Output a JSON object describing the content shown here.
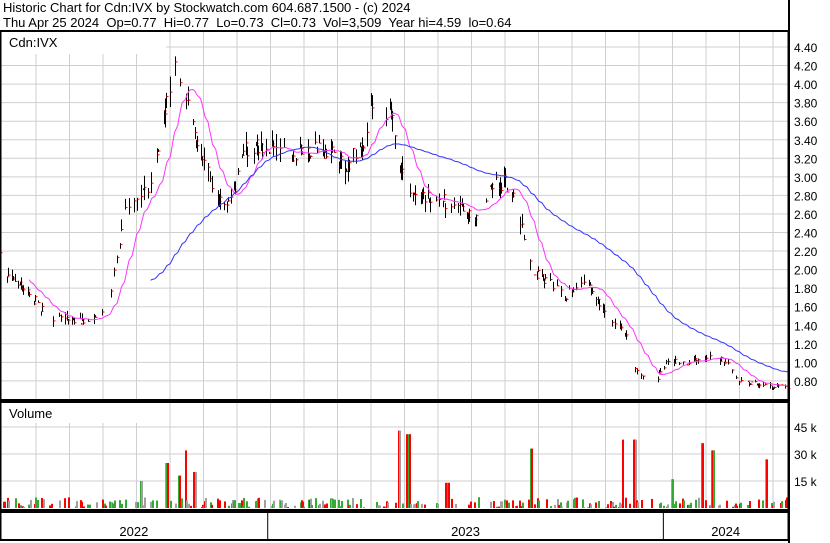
{
  "header": {
    "line1": "Historic Chart for Cdn:IVX by Stockwatch.com 604.687.1500 - (c) 2024",
    "line2": "Thu Apr 25 2024  Op=0.77  Hi=0.77  Lo=0.73  Cl=0.73  Vol=3,509  Year hi=4.59  lo=0.64"
  },
  "chart_data": [
    {
      "type": "ohlc",
      "symbol_label": "Cdn:IVX",
      "date_range": [
        "2022-04-29",
        "2024-04-25"
      ],
      "ylim": [
        0.6,
        4.6
      ],
      "yticks": [
        "0.80",
        "1.00",
        "1.20",
        "1.40",
        "1.60",
        "1.80",
        "2.00",
        "2.20",
        "2.40",
        "2.60",
        "2.80",
        "3.00",
        "3.20",
        "3.40",
        "3.60",
        "3.80",
        "4.00",
        "4.20",
        "4.40"
      ],
      "xlabels": [
        "2022",
        "2023",
        "2024"
      ],
      "grid": true,
      "colors": {
        "bar": "#000000",
        "close_tick": "#ff0000",
        "ma_short": "#ff33ff",
        "ma_long": "#3333ff"
      },
      "close_points": [
        [
          "2022-04-29",
          2.25
        ],
        [
          "2022-05-05",
          1.9
        ],
        [
          "2022-05-20",
          1.8
        ],
        [
          "2022-06-03",
          1.62
        ],
        [
          "2022-06-17",
          1.48
        ],
        [
          "2022-07-08",
          1.45
        ],
        [
          "2022-07-22",
          1.45
        ],
        [
          "2022-08-05",
          1.6
        ],
        [
          "2022-08-12",
          1.95
        ],
        [
          "2022-08-22",
          2.6
        ],
        [
          "2022-09-06",
          2.75
        ],
        [
          "2022-09-18",
          3.0
        ],
        [
          "2022-09-28",
          3.7
        ],
        [
          "2022-10-09",
          4.3
        ],
        [
          "2022-10-16",
          3.9
        ],
        [
          "2022-10-26",
          3.5
        ],
        [
          "2022-11-05",
          3.1
        ],
        [
          "2022-11-15",
          2.7
        ],
        [
          "2022-11-29",
          2.8
        ],
        [
          "2022-12-12",
          3.3
        ],
        [
          "2022-12-28",
          3.35
        ],
        [
          "2023-01-24",
          3.25
        ],
        [
          "2023-02-21",
          3.3
        ],
        [
          "2023-03-14",
          3.15
        ],
        [
          "2023-03-28",
          3.3
        ],
        [
          "2023-04-08",
          3.8
        ],
        [
          "2023-04-25",
          3.7
        ],
        [
          "2023-05-05",
          3.0
        ],
        [
          "2023-05-20",
          2.75
        ],
        [
          "2023-06-10",
          2.75
        ],
        [
          "2023-06-25",
          2.65
        ],
        [
          "2023-07-12",
          2.55
        ],
        [
          "2023-07-25",
          2.9
        ],
        [
          "2023-08-08",
          2.95
        ],
        [
          "2023-08-20",
          2.65
        ],
        [
          "2023-09-01",
          2.0
        ],
        [
          "2023-09-20",
          1.85
        ],
        [
          "2023-10-03",
          1.7
        ],
        [
          "2023-10-15",
          1.9
        ],
        [
          "2023-10-28",
          1.75
        ],
        [
          "2023-11-12",
          1.45
        ],
        [
          "2023-11-28",
          1.3
        ],
        [
          "2023-12-05",
          0.92
        ],
        [
          "2023-12-25",
          0.8
        ],
        [
          "2024-01-05",
          1.02
        ],
        [
          "2024-01-25",
          1.0
        ],
        [
          "2024-02-15",
          1.08
        ],
        [
          "2024-03-01",
          0.98
        ],
        [
          "2024-03-10",
          0.8
        ],
        [
          "2024-04-01",
          0.76
        ],
        [
          "2024-04-25",
          0.73
        ]
      ]
    },
    {
      "type": "bar",
      "title": "Volume",
      "yticks": [
        "15 k",
        "30 k",
        "45 k"
      ],
      "ylim": [
        0,
        50000
      ],
      "colors": {
        "up": "#33aa33",
        "down": "#ff0000",
        "flat": "#a0a0a0"
      },
      "volume_spikes": [
        [
          "2022-09-05",
          15000
        ],
        [
          "2022-09-29",
          25000
        ],
        [
          "2022-10-10",
          18000
        ],
        [
          "2022-10-16",
          32000
        ],
        [
          "2022-10-25",
          20000
        ],
        [
          "2023-05-01",
          43000
        ],
        [
          "2023-05-10",
          41000
        ],
        [
          "2023-06-15",
          14000
        ],
        [
          "2023-09-01",
          33000
        ],
        [
          "2023-11-25",
          38000
        ],
        [
          "2023-12-05",
          38000
        ],
        [
          "2024-01-08",
          16000
        ],
        [
          "2024-02-05",
          36000
        ],
        [
          "2024-02-15",
          32000
        ],
        [
          "2024-04-05",
          27000
        ]
      ]
    }
  ]
}
